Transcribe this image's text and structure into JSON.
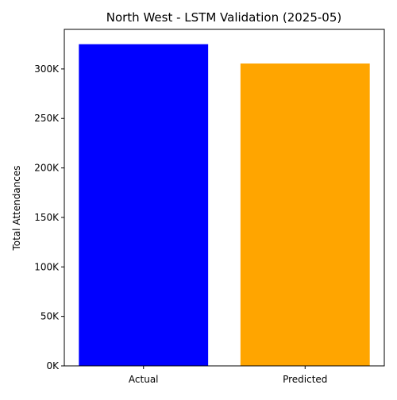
{
  "chart_data": {
    "type": "bar",
    "title": "North West - LSTM Validation (2025-05)",
    "xlabel": "",
    "ylabel": "Total Attendances",
    "categories": [
      "Actual",
      "Predicted"
    ],
    "values": [
      325000,
      305500
    ],
    "colors": [
      "#0000ff",
      "#ffa500"
    ],
    "ylim": [
      0,
      340000
    ],
    "yticks": [
      0,
      50000,
      100000,
      150000,
      200000,
      250000,
      300000
    ],
    "ytick_labels": [
      "0K",
      "50K",
      "100K",
      "150K",
      "200K",
      "250K",
      "300K"
    ],
    "grid": false,
    "legend": "none"
  }
}
